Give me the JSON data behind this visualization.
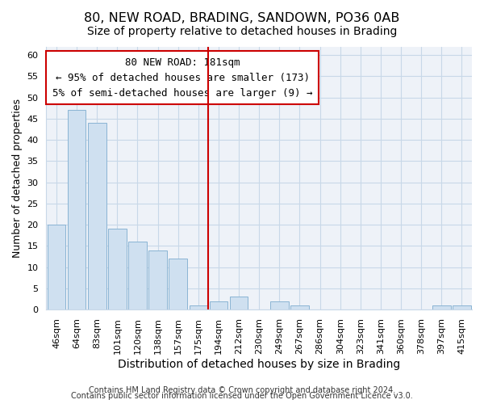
{
  "title": "80, NEW ROAD, BRADING, SANDOWN, PO36 0AB",
  "subtitle": "Size of property relative to detached houses in Brading",
  "xlabel": "Distribution of detached houses by size in Brading",
  "ylabel": "Number of detached properties",
  "bin_labels": [
    "46sqm",
    "64sqm",
    "83sqm",
    "101sqm",
    "120sqm",
    "138sqm",
    "157sqm",
    "175sqm",
    "194sqm",
    "212sqm",
    "230sqm",
    "249sqm",
    "267sqm",
    "286sqm",
    "304sqm",
    "323sqm",
    "341sqm",
    "360sqm",
    "378sqm",
    "397sqm",
    "415sqm"
  ],
  "bar_values": [
    20,
    47,
    44,
    19,
    16,
    14,
    12,
    1,
    2,
    3,
    0,
    2,
    1,
    0,
    0,
    0,
    0,
    0,
    0,
    1,
    1
  ],
  "bar_color": "#cfe0f0",
  "bar_edge_color": "#8ab4d4",
  "vline_x": 7.5,
  "vline_color": "#cc0000",
  "annotation_title": "80 NEW ROAD: 181sqm",
  "annotation_line1": "← 95% of detached houses are smaller (173)",
  "annotation_line2": "5% of semi-detached houses are larger (9) →",
  "box_edge_color": "#cc0000",
  "ylim": [
    0,
    62
  ],
  "yticks": [
    0,
    5,
    10,
    15,
    20,
    25,
    30,
    35,
    40,
    45,
    50,
    55,
    60
  ],
  "footnote1": "Contains HM Land Registry data © Crown copyright and database right 2024.",
  "footnote2": "Contains public sector information licensed under the Open Government Licence v3.0.",
  "title_fontsize": 11.5,
  "subtitle_fontsize": 10,
  "xlabel_fontsize": 10,
  "ylabel_fontsize": 9,
  "tick_fontsize": 8,
  "annotation_title_fontsize": 9.5,
  "annotation_text_fontsize": 9,
  "footnote_fontsize": 7,
  "background_color": "#ffffff",
  "plot_bg_color": "#eef2f8",
  "grid_color": "#c8d8e8"
}
